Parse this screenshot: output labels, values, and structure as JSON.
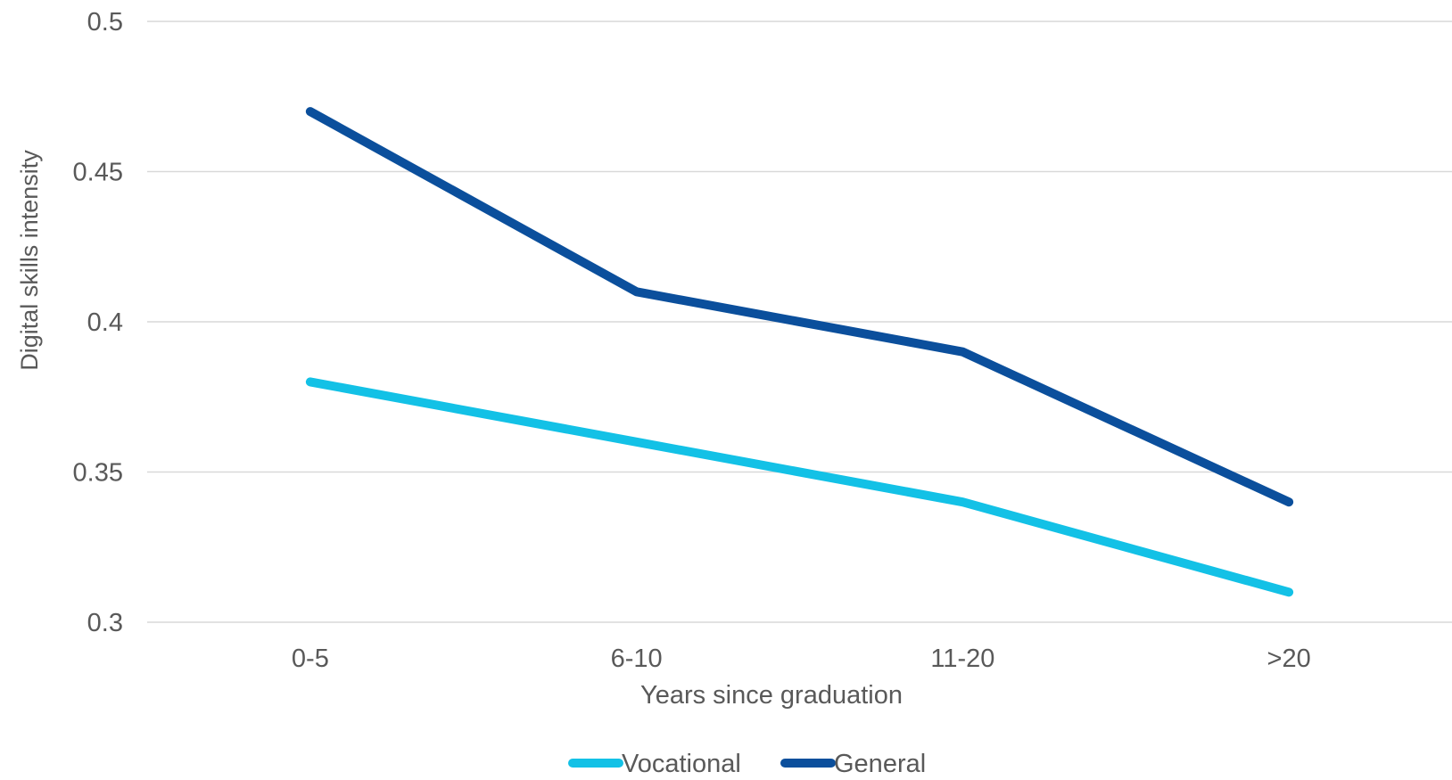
{
  "chart_data": {
    "type": "line",
    "title": "",
    "xlabel": "Years since graduation",
    "ylabel": "Digital skills intensity",
    "categories": [
      "0-5",
      "6-10",
      "11-20",
      ">20"
    ],
    "ylim": [
      0.3,
      0.5
    ],
    "yticks": [
      "0.3",
      "0.35",
      "0.4",
      "0.45",
      "0.5"
    ],
    "grid": true,
    "legend_position": "bottom",
    "series": [
      {
        "name": "Vocational",
        "color": "#13c1e6",
        "values": [
          0.38,
          0.36,
          0.34,
          0.31
        ]
      },
      {
        "name": "General",
        "color": "#0b4f9c",
        "values": [
          0.47,
          0.41,
          0.39,
          0.34
        ]
      }
    ]
  }
}
